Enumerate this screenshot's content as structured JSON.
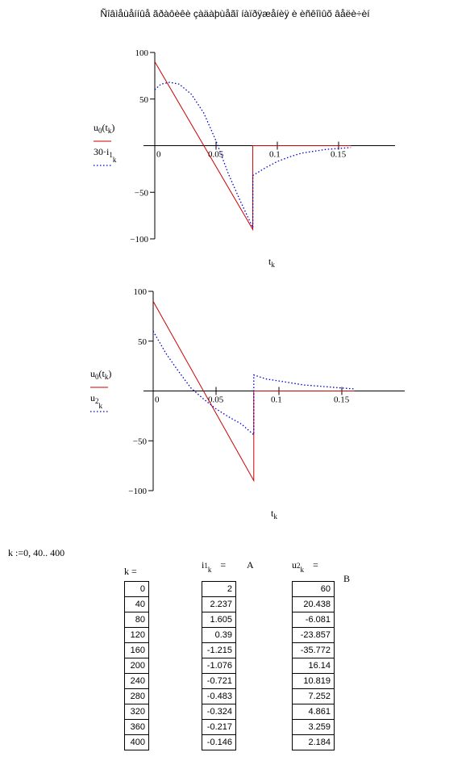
{
  "page": {
    "title": "Ñîâìåùåííûå ãðàôèêè çàäàþùåãî íàïðÿæåíèÿ è èñêîìûõ âåëè÷èí"
  },
  "chart_data": [
    {
      "type": "line",
      "x_var": "t",
      "x_sub": "k",
      "xlim": [
        -0.01,
        0.2
      ],
      "ylim": [
        -100,
        100
      ],
      "x_ticks": [
        0,
        0.05,
        0.1,
        0.15
      ],
      "x_tick_labels": [
        "0",
        "0.05",
        "0.1",
        "0.15"
      ],
      "y_ticks": [
        100,
        50,
        -50,
        -100
      ],
      "y_tick_labels": [
        "100",
        "50",
        "−50",
        "−100"
      ],
      "series": [
        {
          "color": "#cc0000",
          "style": "solid",
          "legend": {
            "prefix": "u",
            "sub": "0",
            "paren": "t",
            "paren_sub": "k"
          },
          "points": [
            [
              0,
              90
            ],
            [
              0.08,
              -90
            ],
            [
              0.08,
              0
            ],
            [
              0.16,
              0
            ]
          ]
        },
        {
          "color": "#0000cc",
          "style": "dotted",
          "legend": {
            "prefix": "30·i",
            "sub": "1",
            "after_sub": "k"
          },
          "points": [
            [
              0,
              60
            ],
            [
              0.005,
              66
            ],
            [
              0.012,
              68
            ],
            [
              0.02,
              66
            ],
            [
              0.03,
              55
            ],
            [
              0.04,
              35
            ],
            [
              0.05,
              5
            ],
            [
              0.06,
              -30
            ],
            [
              0.07,
              -60
            ],
            [
              0.08,
              -88
            ],
            [
              0.08,
              -32
            ],
            [
              0.09,
              -24
            ],
            [
              0.1,
              -17
            ],
            [
              0.11,
              -12
            ],
            [
              0.12,
              -8
            ],
            [
              0.13,
              -6
            ],
            [
              0.14,
              -4
            ],
            [
              0.15,
              -3
            ],
            [
              0.16,
              -2
            ]
          ]
        }
      ]
    },
    {
      "type": "line",
      "x_var": "t",
      "x_sub": "k",
      "xlim": [
        -0.01,
        0.2
      ],
      "ylim": [
        -100,
        100
      ],
      "x_ticks": [
        0,
        0.05,
        0.1,
        0.15
      ],
      "x_tick_labels": [
        "0",
        "0.05",
        "0.1",
        "0.15"
      ],
      "y_ticks": [
        100,
        50,
        -50,
        -100
      ],
      "y_tick_labels": [
        "100",
        "50",
        "−50",
        "−100"
      ],
      "series": [
        {
          "color": "#cc0000",
          "style": "solid",
          "legend": {
            "prefix": "u",
            "sub": "0",
            "paren": "t",
            "paren_sub": "k"
          },
          "points": [
            [
              0,
              90
            ],
            [
              0.08,
              -90
            ],
            [
              0.08,
              0
            ],
            [
              0.16,
              0
            ]
          ]
        },
        {
          "color": "#0000cc",
          "style": "dotted",
          "legend": {
            "prefix": "u",
            "sub": "2",
            "after_sub": "k"
          },
          "points": [
            [
              0,
              60
            ],
            [
              0.01,
              38
            ],
            [
              0.02,
              20
            ],
            [
              0.03,
              3
            ],
            [
              0.04,
              -8
            ],
            [
              0.05,
              -18
            ],
            [
              0.06,
              -26
            ],
            [
              0.07,
              -33
            ],
            [
              0.08,
              -44
            ],
            [
              0.08,
              16
            ],
            [
              0.09,
              12
            ],
            [
              0.1,
              10
            ],
            [
              0.11,
              8
            ],
            [
              0.12,
              6
            ],
            [
              0.13,
              5
            ],
            [
              0.14,
              4
            ],
            [
              0.15,
              3
            ],
            [
              0.16,
              2
            ]
          ]
        }
      ]
    }
  ],
  "range_def": "k :=0, 40.. 400",
  "headers": {
    "k": "k =",
    "i": {
      "base": "i",
      "sub": "1",
      "sub2": "k",
      "eq": "="
    },
    "i_unit": "A",
    "u": {
      "base": "u",
      "sub": "2",
      "sub2": "k",
      "eq": "="
    },
    "u_unit": "B"
  },
  "columns": {
    "k": [
      "0",
      "40",
      "80",
      "120",
      "160",
      "200",
      "240",
      "280",
      "320",
      "360",
      "400"
    ],
    "i1": [
      "2",
      "2.237",
      "1.605",
      "0.39",
      "-1.215",
      "-1.076",
      "-0.721",
      "-0.483",
      "-0.324",
      "-0.217",
      "-0.146"
    ],
    "u2": [
      "60",
      "20.438",
      "-6.081",
      "-23.857",
      "-35.772",
      "16.14",
      "10.819",
      "7.252",
      "4.861",
      "3.259",
      "2.184"
    ]
  }
}
